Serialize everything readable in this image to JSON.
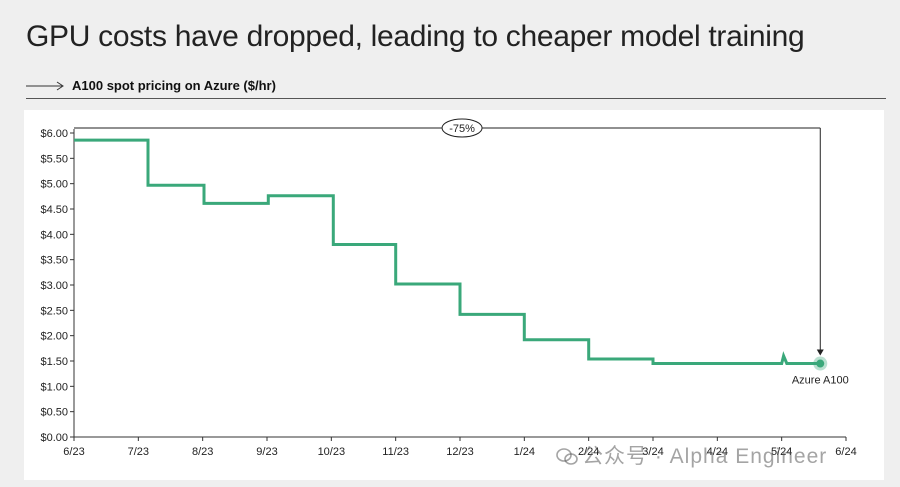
{
  "page": {
    "title": "GPU costs have dropped, leading to cheaper model training",
    "subtitle": "A100 spot pricing on Azure ($/hr)",
    "watermark": "公众号 · Alpha Engineer"
  },
  "colors": {
    "line": "#3aa87a",
    "marker": "#3aa87a",
    "axis": "#333333",
    "background": "#efefef"
  },
  "chart_data": {
    "type": "line",
    "title": "A100 spot pricing on Azure ($/hr)",
    "xlabel": "",
    "ylabel": "",
    "x_ticks": [
      "6/23",
      "7/23",
      "8/23",
      "9/23",
      "10/23",
      "11/23",
      "12/23",
      "1/24",
      "2/24",
      "3/24",
      "4/24",
      "5/24",
      "6/24"
    ],
    "y_ticks": [
      "$0.00",
      "$0.50",
      "$1.00",
      "$1.50",
      "$2.00",
      "$2.50",
      "$3.00",
      "$3.50",
      "$4.00",
      "$4.50",
      "$5.00",
      "$5.50",
      "$6.00"
    ],
    "ylim": [
      0,
      6
    ],
    "xlim": [
      0,
      12
    ],
    "grid": false,
    "series": [
      {
        "name": "Azure A100",
        "points": [
          [
            0.0,
            5.86
          ],
          [
            1.15,
            5.86
          ],
          [
            1.15,
            4.97
          ],
          [
            2.02,
            4.97
          ],
          [
            2.02,
            4.61
          ],
          [
            3.02,
            4.61
          ],
          [
            3.02,
            4.76
          ],
          [
            4.03,
            4.76
          ],
          [
            4.03,
            3.8
          ],
          [
            5.0,
            3.8
          ],
          [
            5.0,
            3.02
          ],
          [
            6.0,
            3.02
          ],
          [
            6.0,
            2.42
          ],
          [
            7.0,
            2.42
          ],
          [
            7.0,
            1.92
          ],
          [
            8.0,
            1.92
          ],
          [
            8.0,
            1.54
          ],
          [
            9.0,
            1.54
          ],
          [
            9.0,
            1.45
          ],
          [
            11.0,
            1.45
          ],
          [
            11.03,
            1.6
          ],
          [
            11.08,
            1.45
          ],
          [
            11.6,
            1.45
          ]
        ]
      }
    ],
    "annotation": {
      "label": "-75%"
    }
  }
}
